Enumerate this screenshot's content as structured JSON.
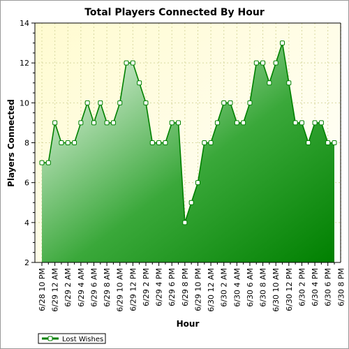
{
  "chart_data": {
    "type": "area",
    "title": "Total Players Connected By Hour",
    "xlabel": "Hour",
    "ylabel": "Players Connected",
    "ylim": [
      2,
      14
    ],
    "yticks": [
      2,
      4,
      6,
      8,
      10,
      12,
      14
    ],
    "x_tick_labels": [
      "6/28 10 PM",
      "6/29 12 AM",
      "6/29 2 AM",
      "6/29 4 AM",
      "6/29 6 AM",
      "6/29 8 AM",
      "6/29 10 AM",
      "6/29 12 PM",
      "6/29 2 PM",
      "6/29 4 PM",
      "6/29 6 PM",
      "6/29 8 PM",
      "6/29 10 PM",
      "6/30 12 AM",
      "6/30 2 AM",
      "6/30 4 AM",
      "6/30 6 AM",
      "6/30 8 AM",
      "6/30 10 AM",
      "6/30 12 PM",
      "6/30 2 PM",
      "6/30 4 PM",
      "6/30 6 PM",
      "6/30 8 PM"
    ],
    "grid": true,
    "legend_position": "bottom-left",
    "series": [
      {
        "name": "Lost Wishes",
        "color": "#008000",
        "values": [
          7,
          7,
          9,
          8,
          8,
          8,
          9,
          10,
          9,
          10,
          9,
          9,
          10,
          12,
          12,
          11,
          10,
          8,
          8,
          8,
          9,
          9,
          4,
          5,
          6,
          8,
          8,
          9,
          10,
          10,
          9,
          9,
          10,
          12,
          12,
          11,
          12,
          13,
          11,
          9,
          9,
          8,
          9,
          9,
          8,
          8
        ]
      }
    ]
  }
}
